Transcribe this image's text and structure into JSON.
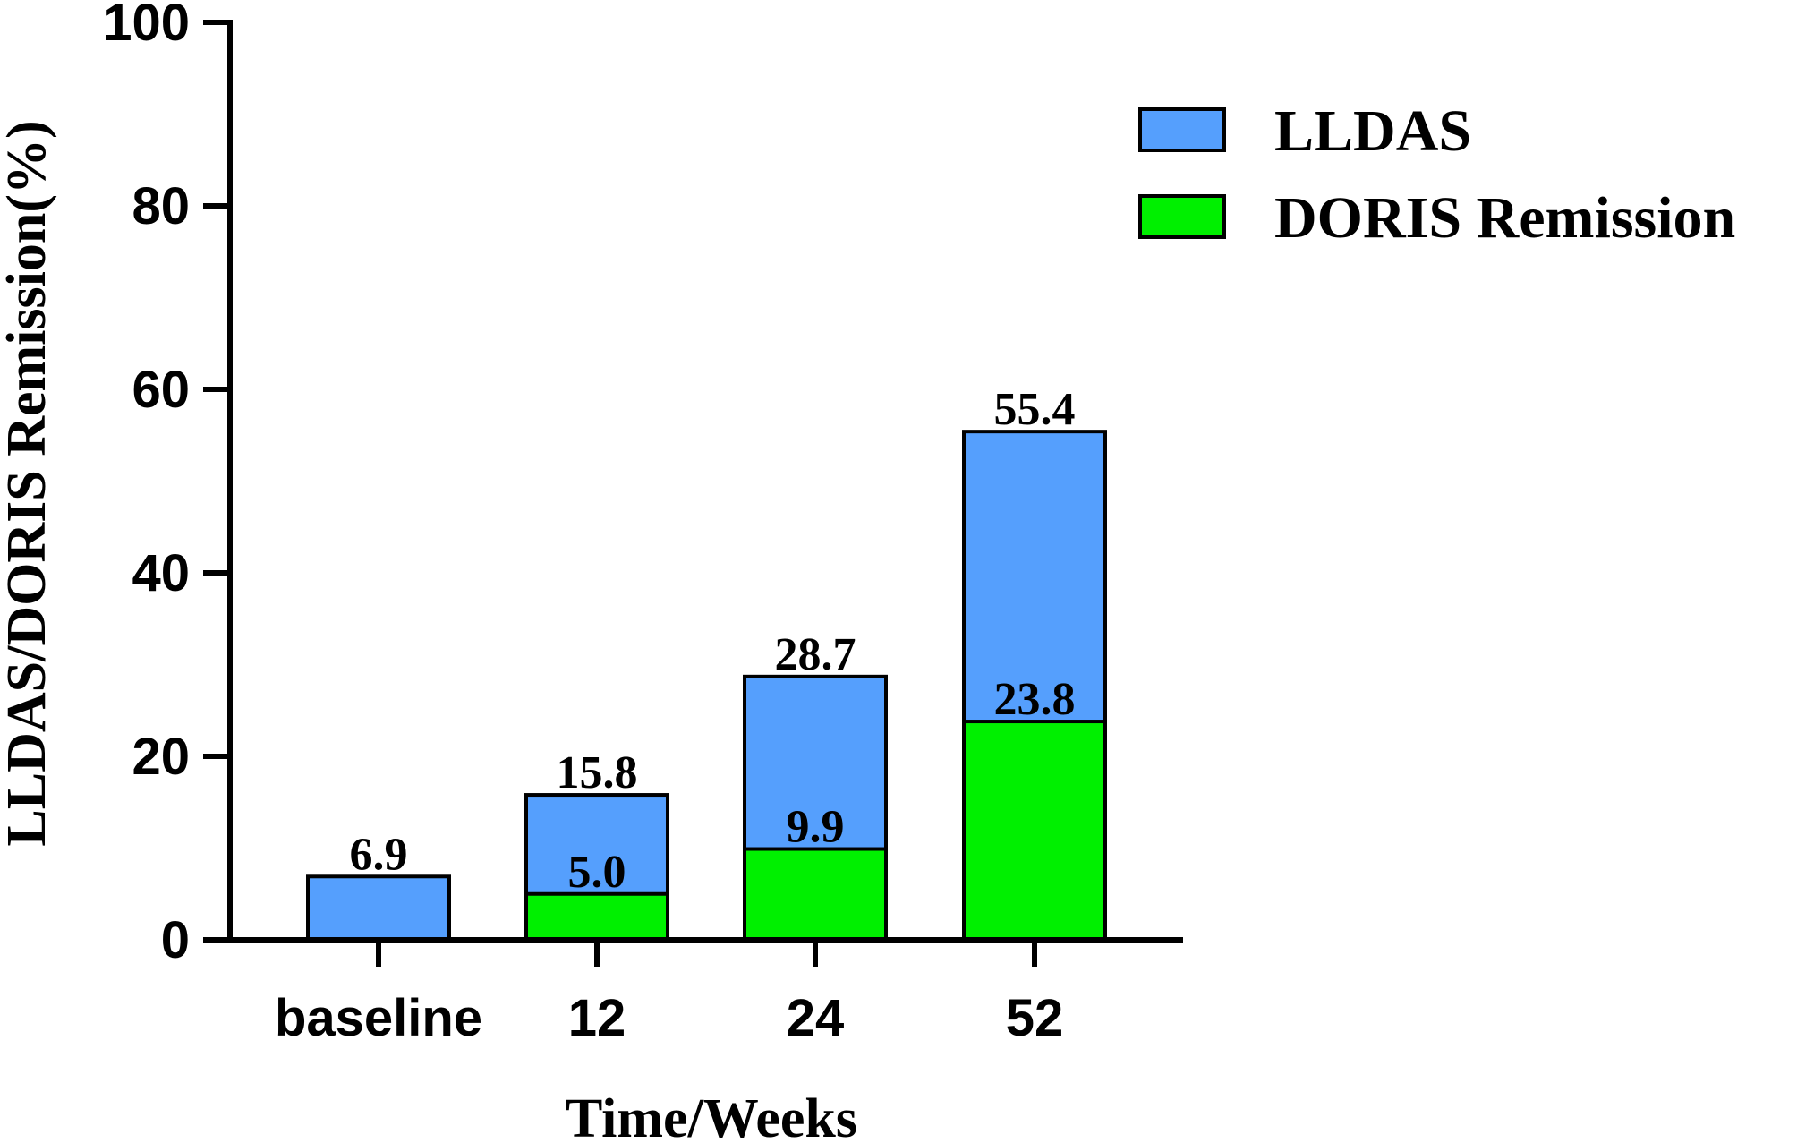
{
  "chart_data": {
    "type": "bar",
    "stacked_overlay": true,
    "title": "",
    "xlabel": "Time/Weeks",
    "ylabel": "LLDAS/DORIS Remission(%)",
    "ylim": [
      0,
      100
    ],
    "yticks": [
      0,
      20,
      40,
      60,
      80,
      100
    ],
    "categories": [
      "baseline",
      "12",
      "24",
      "52"
    ],
    "series": [
      {
        "name": "LLDAS",
        "color": "#559ffd",
        "values": [
          6.9,
          15.8,
          28.7,
          55.4
        ],
        "labels": [
          "6.9",
          "15.8",
          "28.7",
          "55.4"
        ]
      },
      {
        "name": "DORIS Remission",
        "color": "#00f000",
        "values": [
          0,
          5.0,
          9.9,
          23.8
        ],
        "labels": [
          "",
          "5.0",
          "9.9",
          "23.8"
        ]
      }
    ],
    "legend_position": "top-right",
    "grid": false
  }
}
